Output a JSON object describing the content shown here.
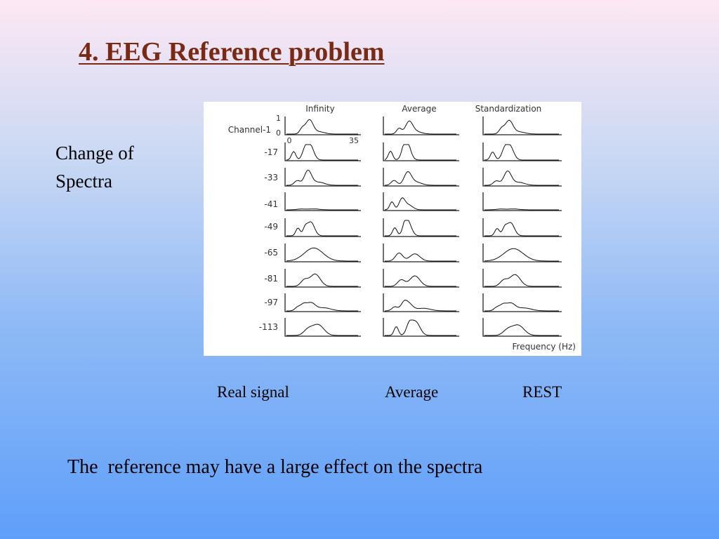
{
  "slide": {
    "title": "4. EEG Reference problem",
    "side_label_lines": [
      "Change of",
      "Spectra"
    ],
    "captions": {
      "real_signal": "Real signal",
      "average": "Average",
      "rest": "REST"
    },
    "conclusion": "The  reference may have a large effect on the spectra"
  },
  "figure": {
    "column_titles": [
      "Infinity",
      "Average",
      "Standardization"
    ],
    "row_labels": [
      "Channel-1",
      "-17",
      "-33",
      "-41",
      "-49",
      "-65",
      "-81",
      "-97",
      "-113"
    ],
    "axis": {
      "y_top": "1",
      "y_bottom": "0",
      "x_start": "0",
      "x_end": "35"
    },
    "xlabel": "Frequency (Hz)"
  }
}
